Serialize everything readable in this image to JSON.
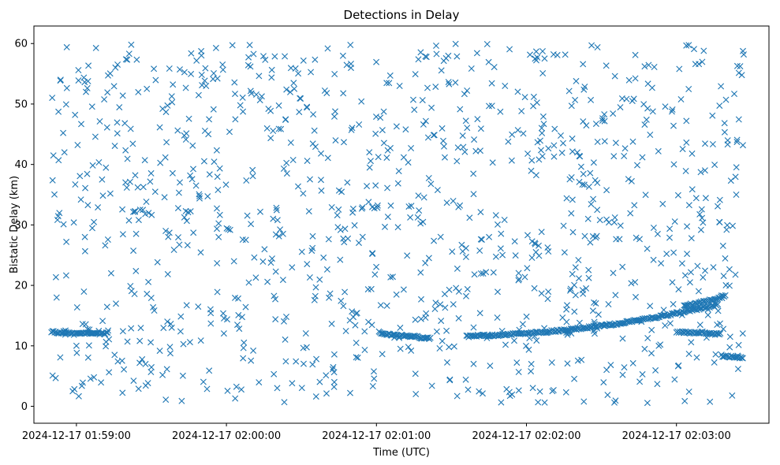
{
  "chart_data": {
    "type": "scatter",
    "title": "Detections in Delay",
    "xlabel": "Time (UTC)",
    "ylabel": "Bistatic Delay (km)",
    "marker": "x",
    "color": "#1f77b4",
    "grid": false,
    "legend": "none",
    "x_ticks": [
      "2024-12-17 01:59:00",
      "2024-12-17 02:00:00",
      "2024-12-17 02:01:00",
      "2024-12-17 02:02:00",
      "2024-12-17 02:03:00"
    ],
    "x_tick_seconds": [
      0,
      60,
      120,
      180,
      240
    ],
    "x_range_seconds": [
      -17,
      277
    ],
    "y_ticks": [
      0,
      10,
      20,
      30,
      40,
      50,
      60
    ],
    "ylim": [
      -2.8,
      62.9
    ],
    "x_unit": "seconds after 2024-12-17 01:59:00 UTC",
    "data_extent": {
      "t_start": -10,
      "t_end": 267,
      "delay_min": 0,
      "delay_max": 60
    },
    "tracks": [
      {
        "description": "flat track",
        "points": [
          [
            -10,
            12.3
          ],
          [
            -7,
            12.2
          ],
          [
            -4,
            12.1
          ],
          [
            -1,
            12.0
          ],
          [
            2,
            12.0
          ],
          [
            5,
            12.1
          ],
          [
            8,
            12.0
          ],
          [
            11,
            12.0
          ],
          [
            13,
            12.1
          ]
        ]
      },
      {
        "description": "descending track",
        "points": [
          [
            121,
            12.3
          ],
          [
            124,
            12.0
          ],
          [
            127,
            11.8
          ],
          [
            130,
            11.7
          ],
          [
            133,
            11.6
          ],
          [
            136,
            11.5
          ],
          [
            139,
            11.3
          ],
          [
            142,
            11.2
          ]
        ]
      },
      {
        "description": "rising track",
        "points": [
          [
            156,
            11.6
          ],
          [
            170,
            11.8
          ],
          [
            185,
            12.2
          ],
          [
            200,
            12.8
          ],
          [
            215,
            13.6
          ],
          [
            230,
            14.6
          ],
          [
            245,
            15.8
          ],
          [
            257,
            16.8
          ]
        ]
      },
      {
        "description": "upper rising track",
        "points": [
          [
            243,
            16.6
          ],
          [
            248,
            17.0
          ],
          [
            252,
            17.4
          ],
          [
            256,
            17.8
          ],
          [
            260,
            18.3
          ]
        ]
      },
      {
        "description": "flat track",
        "points": [
          [
            240,
            12.3
          ],
          [
            245,
            12.2
          ],
          [
            250,
            12.2
          ],
          [
            255,
            12.0
          ],
          [
            258,
            11.9
          ]
        ]
      },
      {
        "description": "flat track",
        "points": [
          [
            258,
            8.4
          ],
          [
            261,
            8.2
          ],
          [
            264,
            8.1
          ],
          [
            267,
            8.0
          ]
        ]
      }
    ],
    "noise_points_approx": 1100
  }
}
